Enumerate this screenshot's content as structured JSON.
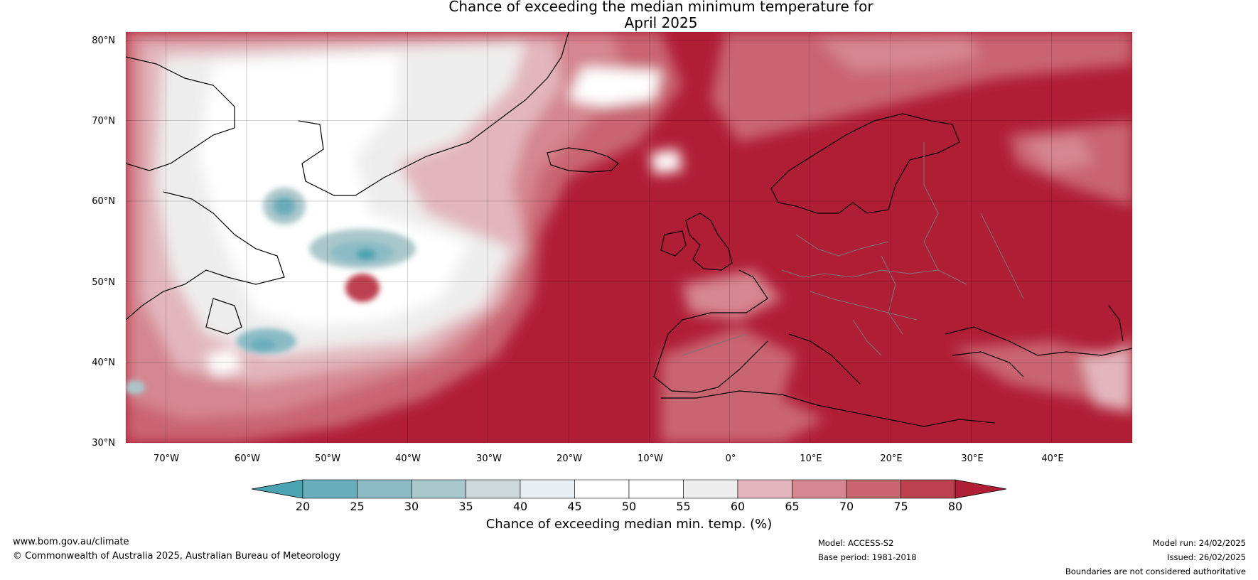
{
  "title": "Chance of exceeding the median minimum temperature for\nApril 2025",
  "map": {
    "lat_labels": [
      "80°N",
      "70°N",
      "60°N",
      "50°N",
      "40°N",
      "30°N"
    ],
    "lon_labels": [
      "70°W",
      "60°W",
      "50°W",
      "40°W",
      "30°W",
      "20°W",
      "10°W",
      "0°",
      "10°E",
      "20°E",
      "30°E",
      "40°E"
    ],
    "extent": {
      "lon_min": -75,
      "lon_max": 50,
      "lat_min": 30,
      "lat_max": 81
    },
    "grid": true,
    "fill_color_dominant": "#b01e36"
  },
  "colorbar": {
    "ticks": [
      "20",
      "25",
      "30",
      "35",
      "40",
      "45",
      "50",
      "55",
      "60",
      "65",
      "70",
      "75",
      "80"
    ],
    "colors": [
      "#4aa3b1",
      "#6aaebb",
      "#8bbcc6",
      "#aac7cb",
      "#cdd8da",
      "#e8eff2",
      "#ffffff",
      "#ffffff",
      "#eeeded",
      "#e2b6bc",
      "#d58690",
      "#c96571",
      "#bd404f",
      "#b01e36"
    ],
    "label": "Chance of exceeding median min. temp. (%)"
  },
  "footer": {
    "website": "www.bom.gov.au/climate",
    "copyright": "© Commonwealth of Australia 2025, Australian Bureau of Meteorology",
    "model": "Model: ACCESS-S2",
    "base_period": "Base period: 1981-2018",
    "model_run": "Model run: 24/02/2025",
    "issued": "Issued: 26/02/2025",
    "disclaimer": "Boundaries are not considered authoritative"
  }
}
